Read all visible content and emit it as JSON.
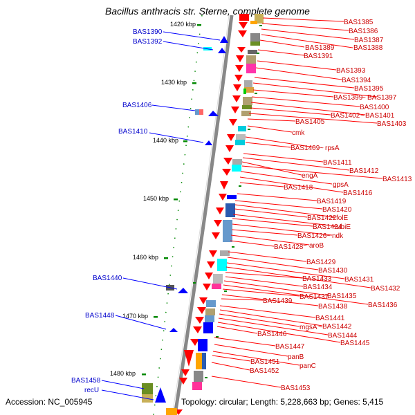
{
  "title": "Bacillus anthracis str. Sterne, complete genome",
  "footer": {
    "accession": "Accession: NC_005945",
    "topology": "Topology: circular; Length: 5,228,663 bp; Genes: 5,415"
  },
  "scale_ticks": [
    "1420 kbp",
    "1430 kbp",
    "1440 kbp",
    "1450 kbp",
    "1460 kbp",
    "1470 kbp",
    "1480 kbp"
  ],
  "colors": {
    "forward": "#ff0000",
    "reverse": "#0000ff",
    "backbone": "#888888",
    "tick": "#008800"
  },
  "right_labels": [
    "BAS1385",
    "BAS1386",
    "BAS1387",
    "BAS1388",
    "BAS1389",
    "BAS1391",
    "BAS1393",
    "BAS1394",
    "BAS1395",
    "BAS1397",
    "BAS1399",
    "BAS1400",
    "BAS1401",
    "BAS1402",
    "BAS1403",
    "BAS1405",
    "cmk",
    "rpsA",
    "BAS1409",
    "BAS1411",
    "BAS1412",
    "engA",
    "BAS1413",
    "gpsA",
    "BAS1416",
    "BAS1418",
    "BAS1419",
    "BAS1420",
    "folE",
    "BAS1422",
    "ubiE",
    "BAS1424",
    "ndk",
    "BAS1426",
    "aroB",
    "BAS1428",
    "BAS1429",
    "BAS1430",
    "BAS1431",
    "BAS1432",
    "BAS1433",
    "BAS1434",
    "BAS1435",
    "BAS1436",
    "BAS1437",
    "BAS1438",
    "BAS1439",
    "BAS1441",
    "BAS1442",
    "mgsA",
    "BAS1444",
    "BAS1445",
    "BAS1446",
    "BAS1447",
    "panB",
    "panC",
    "BAS1451",
    "BAS1452",
    "BAS1453"
  ],
  "left_labels": [
    "BAS1390",
    "BAS1392",
    "BAS1406",
    "BAS1410",
    "BAS1440",
    "BAS1448",
    "BAS1458",
    "recU"
  ]
}
